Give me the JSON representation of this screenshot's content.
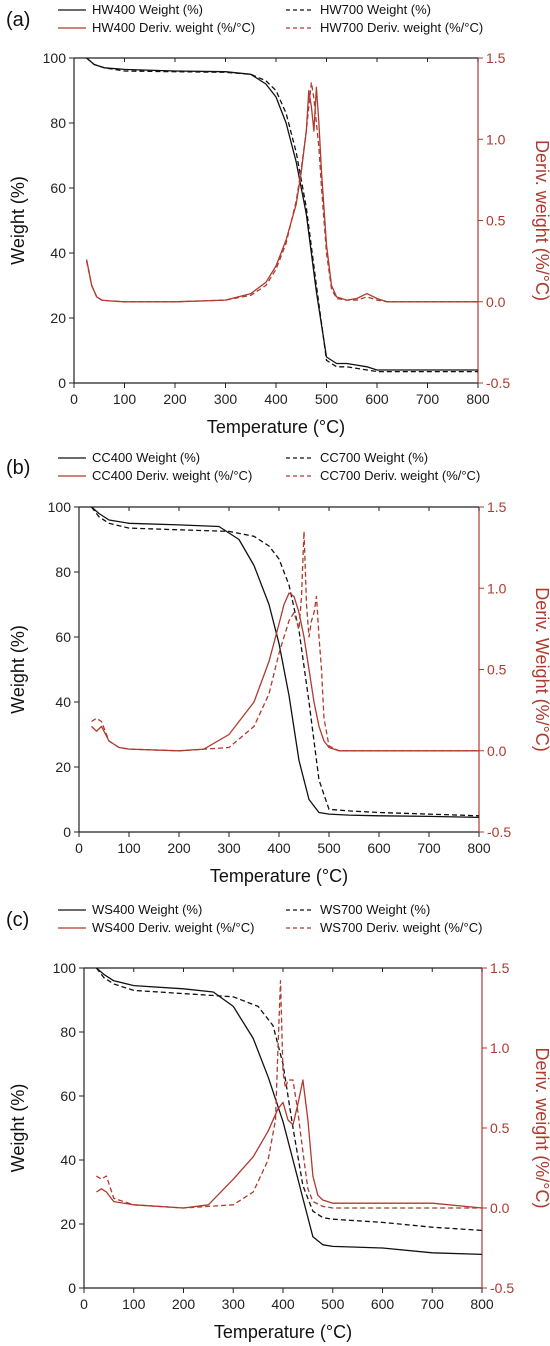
{
  "colors": {
    "weight": "#111111",
    "deriv": "#b03a2e",
    "axis_left": "#222222",
    "axis_right": "#b03a2e"
  },
  "chart_data": [
    {
      "type": "line",
      "panel_label": "(a)",
      "xlabel": "Temperature (°C)",
      "ylabel": "Weight (%)",
      "y2label": "Deriv. weight (%/°C)",
      "xlim": [
        0,
        800
      ],
      "ylim": [
        0,
        100
      ],
      "y2lim": [
        -0.5,
        1.5
      ],
      "xticks": [
        "0",
        "100",
        "200",
        "300",
        "400",
        "500",
        "600",
        "700",
        "800"
      ],
      "yticks": [
        "0",
        "20",
        "40",
        "60",
        "80",
        "100"
      ],
      "y2ticks": [
        "-0.5",
        "0.0",
        "0.5",
        "1.0",
        "1.5"
      ],
      "legend_position": "top",
      "series": [
        {
          "name": "HW400 Weight (%)",
          "axis": "left",
          "style": "solid",
          "color": "#111111",
          "x": [
            25,
            40,
            60,
            100,
            200,
            300,
            350,
            380,
            400,
            420,
            440,
            460,
            480,
            500,
            520,
            540,
            560,
            580,
            600,
            700,
            800
          ],
          "y": [
            100,
            98,
            97,
            96.5,
            96,
            95.8,
            95,
            92,
            88,
            80,
            68,
            52,
            28,
            8,
            6,
            6,
            5.5,
            5,
            4,
            4,
            4
          ]
        },
        {
          "name": "HW700 Weight (%)",
          "axis": "left",
          "style": "dashed",
          "color": "#111111",
          "x": [
            25,
            40,
            60,
            100,
            200,
            300,
            350,
            380,
            400,
            420,
            440,
            460,
            480,
            500,
            520,
            540,
            560,
            580,
            600,
            700,
            800
          ],
          "y": [
            100,
            98,
            97,
            96,
            95.8,
            95.6,
            95,
            93,
            90,
            83,
            71,
            54,
            30,
            7,
            5,
            5,
            4.5,
            4,
            3.5,
            3.5,
            3.5
          ]
        },
        {
          "name": "HW400 Deriv. weight (%/°C)",
          "axis": "right",
          "style": "solid",
          "color": "#b03a2e",
          "x": [
            25,
            35,
            45,
            55,
            70,
            100,
            200,
            300,
            350,
            380,
            400,
            420,
            440,
            450,
            460,
            465,
            470,
            475,
            480,
            485,
            490,
            500,
            510,
            520,
            540,
            560,
            580,
            600,
            620,
            700,
            800
          ],
          "y": [
            0.26,
            0.1,
            0.03,
            0.01,
            0.005,
            0.0,
            0.0,
            0.01,
            0.05,
            0.12,
            0.22,
            0.38,
            0.6,
            0.8,
            1.05,
            1.3,
            1.2,
            1.05,
            1.32,
            1.1,
            0.8,
            0.35,
            0.1,
            0.03,
            0.01,
            0.02,
            0.05,
            0.02,
            0.0,
            0.0,
            0.0
          ]
        },
        {
          "name": "HW700 Deriv. weight (%/°C)",
          "axis": "right",
          "style": "dashed",
          "color": "#b03a2e",
          "x": [
            25,
            35,
            45,
            55,
            70,
            100,
            200,
            300,
            350,
            380,
            400,
            420,
            440,
            450,
            460,
            465,
            470,
            475,
            480,
            485,
            490,
            500,
            510,
            520,
            540,
            560,
            580,
            600,
            620,
            700,
            800
          ],
          "y": [
            0.25,
            0.1,
            0.03,
            0.01,
            0.005,
            0.0,
            0.0,
            0.01,
            0.04,
            0.1,
            0.2,
            0.36,
            0.62,
            0.82,
            1.05,
            1.2,
            1.35,
            1.25,
            1.1,
            0.95,
            0.7,
            0.3,
            0.08,
            0.02,
            0.01,
            0.01,
            0.03,
            0.01,
            0.0,
            0.0,
            0.0
          ]
        }
      ]
    },
    {
      "type": "line",
      "panel_label": "(b)",
      "xlabel": "Temperature (°C)",
      "ylabel": "Weight (%)",
      "y2label": "Deriv. Weight (%/°C)",
      "xlim": [
        0,
        800
      ],
      "ylim": [
        0,
        100
      ],
      "y2lim": [
        -0.5,
        1.5
      ],
      "xticks": [
        "0",
        "100",
        "200",
        "300",
        "400",
        "500",
        "600",
        "700",
        "800"
      ],
      "yticks": [
        "0",
        "20",
        "40",
        "60",
        "80",
        "100"
      ],
      "y2ticks": [
        "-0.5",
        "0.0",
        "0.5",
        "1.0",
        "1.5"
      ],
      "legend_position": "top",
      "series": [
        {
          "name": "CC400 Weight (%)",
          "axis": "left",
          "style": "solid",
          "color": "#111111",
          "x": [
            25,
            40,
            60,
            100,
            200,
            280,
            320,
            350,
            380,
            400,
            420,
            440,
            460,
            480,
            500,
            540,
            600,
            700,
            800
          ],
          "y": [
            100,
            98,
            96,
            95,
            94.5,
            94,
            90,
            82,
            70,
            58,
            42,
            22,
            10,
            6,
            5.5,
            5.2,
            5,
            4.8,
            4.5
          ]
        },
        {
          "name": "CC700 Weight (%)",
          "axis": "left",
          "style": "dashed",
          "color": "#111111",
          "x": [
            25,
            40,
            60,
            100,
            200,
            300,
            350,
            380,
            400,
            420,
            440,
            460,
            480,
            500,
            540,
            600,
            700,
            800
          ],
          "y": [
            100,
            97,
            95,
            93.5,
            93,
            92.5,
            91,
            88,
            84,
            76,
            62,
            40,
            16,
            7,
            6.5,
            6,
            5.5,
            5
          ]
        },
        {
          "name": "CC400 Deriv. weight (%/°C)",
          "axis": "right",
          "style": "solid",
          "color": "#b03a2e",
          "x": [
            25,
            35,
            45,
            60,
            80,
            100,
            200,
            250,
            300,
            350,
            380,
            400,
            410,
            420,
            430,
            440,
            450,
            460,
            470,
            480,
            490,
            500,
            520,
            600,
            700,
            800
          ],
          "y": [
            0.15,
            0.12,
            0.15,
            0.06,
            0.02,
            0.01,
            0.0,
            0.01,
            0.1,
            0.3,
            0.55,
            0.78,
            0.9,
            0.97,
            0.95,
            0.85,
            0.7,
            0.5,
            0.3,
            0.15,
            0.06,
            0.02,
            0.0,
            0.0,
            0.0,
            0.0
          ]
        },
        {
          "name": "CC700 Deriv. weight (%/°C)",
          "axis": "right",
          "style": "dashed",
          "color": "#b03a2e",
          "x": [
            25,
            35,
            45,
            60,
            80,
            100,
            200,
            300,
            350,
            380,
            400,
            410,
            420,
            430,
            440,
            445,
            450,
            455,
            460,
            465,
            470,
            475,
            480,
            485,
            490,
            500,
            520,
            600,
            700,
            800
          ],
          "y": [
            0.18,
            0.2,
            0.18,
            0.06,
            0.02,
            0.01,
            0.0,
            0.02,
            0.15,
            0.35,
            0.6,
            0.7,
            0.8,
            0.85,
            0.75,
            0.95,
            1.35,
            0.9,
            0.7,
            0.8,
            0.85,
            0.95,
            0.7,
            0.5,
            0.2,
            0.03,
            0.0,
            0.0,
            0.0,
            0.0
          ]
        }
      ]
    },
    {
      "type": "line",
      "panel_label": "(c)",
      "xlabel": "Temperature (°C)",
      "ylabel": "Weight (%)",
      "y2label": "Deriv. weight (%/°C)",
      "xlim": [
        0,
        800
      ],
      "ylim": [
        0,
        100
      ],
      "y2lim": [
        -0.5,
        1.5
      ],
      "xticks": [
        "0",
        "100",
        "200",
        "300",
        "400",
        "500",
        "600",
        "700",
        "800"
      ],
      "yticks": [
        "0",
        "20",
        "40",
        "60",
        "80",
        "100"
      ],
      "y2ticks": [
        "-0.5",
        "0.0",
        "0.5",
        "1.0",
        "1.5"
      ],
      "legend_position": "top",
      "series": [
        {
          "name": "WS400 Weight (%)",
          "axis": "left",
          "style": "solid",
          "color": "#111111",
          "x": [
            25,
            40,
            60,
            100,
            200,
            260,
            300,
            340,
            370,
            400,
            420,
            440,
            460,
            480,
            500,
            600,
            700,
            800
          ],
          "y": [
            100,
            98,
            96,
            94.5,
            93.5,
            92.5,
            88,
            78,
            66,
            52,
            40,
            28,
            16,
            13.5,
            13,
            12.5,
            11,
            10.5
          ]
        },
        {
          "name": "WS700 Weight (%)",
          "axis": "left",
          "style": "dashed",
          "color": "#111111",
          "x": [
            25,
            40,
            60,
            100,
            200,
            300,
            350,
            380,
            400,
            420,
            440,
            460,
            480,
            500,
            600,
            700,
            800
          ],
          "y": [
            100,
            97,
            95,
            93,
            92,
            91,
            88,
            82,
            70,
            50,
            32,
            24,
            22,
            21.5,
            20.5,
            19,
            18
          ]
        },
        {
          "name": "WS400 Deriv. weight (%/°C)",
          "axis": "right",
          "style": "solid",
          "color": "#b03a2e",
          "x": [
            25,
            35,
            45,
            60,
            100,
            200,
            250,
            300,
            340,
            370,
            390,
            400,
            410,
            420,
            430,
            440,
            450,
            460,
            470,
            480,
            500,
            600,
            700,
            800
          ],
          "y": [
            0.1,
            0.12,
            0.1,
            0.04,
            0.02,
            0.0,
            0.02,
            0.18,
            0.32,
            0.48,
            0.62,
            0.66,
            0.55,
            0.52,
            0.65,
            0.8,
            0.55,
            0.2,
            0.08,
            0.05,
            0.03,
            0.03,
            0.03,
            0.0
          ]
        },
        {
          "name": "WS700 Deriv. weight (%/°C)",
          "axis": "right",
          "style": "dashed",
          "color": "#b03a2e",
          "x": [
            25,
            35,
            45,
            60,
            100,
            200,
            300,
            340,
            370,
            385,
            390,
            395,
            400,
            405,
            410,
            420,
            430,
            440,
            450,
            460,
            480,
            500,
            600,
            700,
            800
          ],
          "y": [
            0.2,
            0.18,
            0.2,
            0.06,
            0.02,
            0.0,
            0.02,
            0.1,
            0.3,
            0.55,
            1.0,
            1.42,
            0.85,
            0.75,
            0.8,
            0.8,
            0.6,
            0.35,
            0.12,
            0.04,
            0.01,
            0.0,
            0.0,
            0.0,
            0.0
          ]
        }
      ]
    }
  ]
}
